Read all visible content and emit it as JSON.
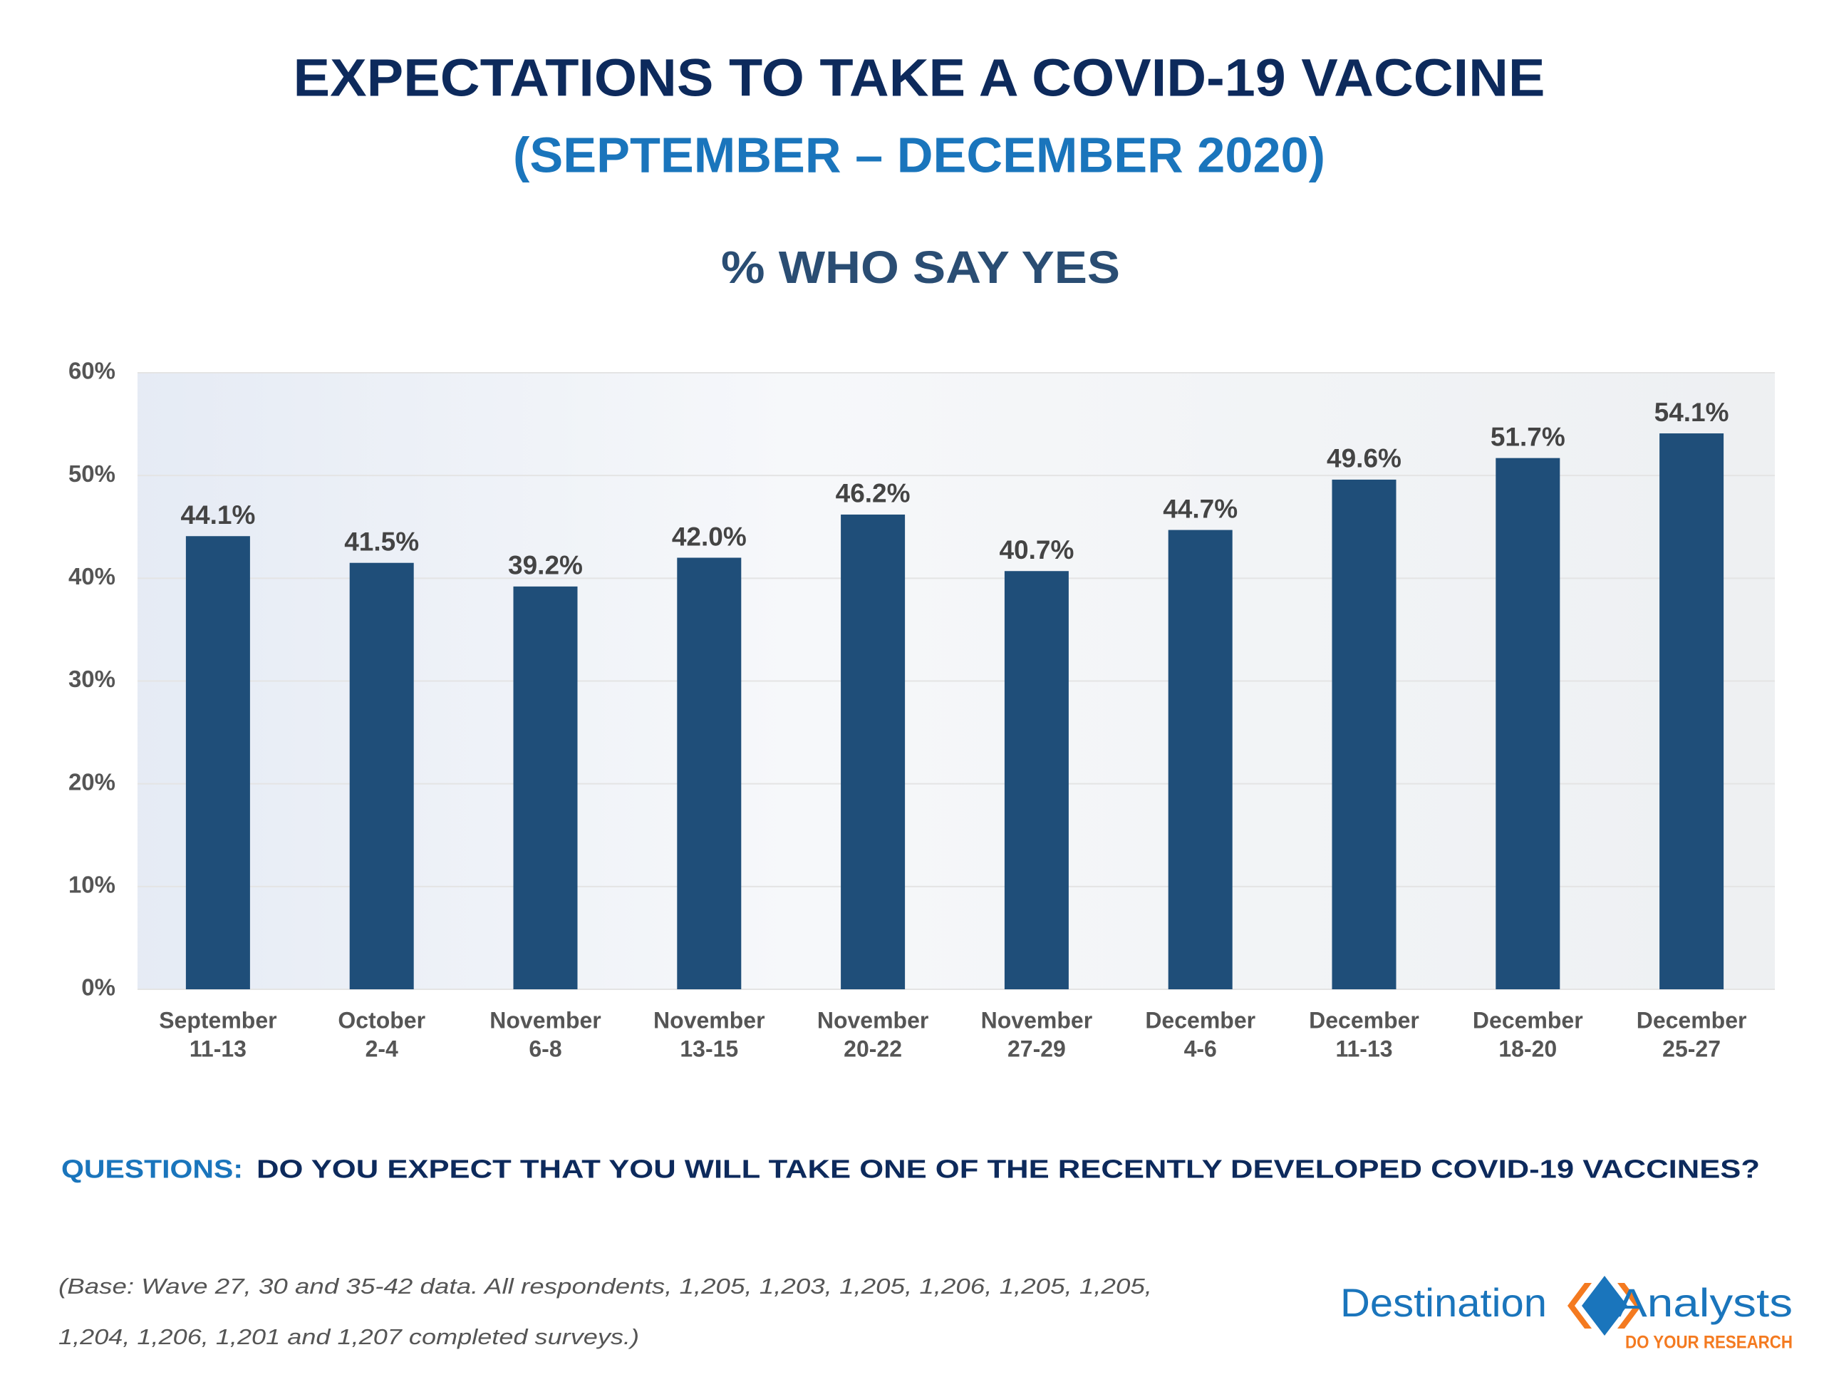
{
  "title": "EXPECTATIONS TO TAKE A COVID-19 VACCINE",
  "subtitle": "(SEPTEMBER – DECEMBER 2020)",
  "chart_data": {
    "type": "bar",
    "title": "% WHO SAY YES",
    "categories": [
      [
        "September",
        "11-13"
      ],
      [
        "October",
        "2-4"
      ],
      [
        "November",
        "6-8"
      ],
      [
        "November",
        "13-15"
      ],
      [
        "November",
        "20-22"
      ],
      [
        "November",
        "27-29"
      ],
      [
        "December",
        "4-6"
      ],
      [
        "December",
        "11-13"
      ],
      [
        "December",
        "18-20"
      ],
      [
        "December",
        "25-27"
      ]
    ],
    "values": [
      44.1,
      41.5,
      39.2,
      42.0,
      46.2,
      40.7,
      44.7,
      49.6,
      51.7,
      54.1
    ],
    "value_labels": [
      "44.1%",
      "41.5%",
      "39.2%",
      "42.0%",
      "46.2%",
      "40.7%",
      "44.7%",
      "49.6%",
      "51.7%",
      "54.1%"
    ],
    "color": "#1f4e79",
    "ylim": [
      0,
      60
    ],
    "yticks": [
      {
        "value": 0,
        "label": "0%"
      },
      {
        "value": 10,
        "label": "10%"
      },
      {
        "value": 20,
        "label": "20%"
      },
      {
        "value": 30,
        "label": "30%"
      },
      {
        "value": 40,
        "label": "40%"
      },
      {
        "value": 50,
        "label": "50%"
      },
      {
        "value": 60,
        "label": "60%"
      }
    ],
    "grid": true
  },
  "question_label": "QUESTIONS:",
  "question": "DO YOU EXPECT THAT YOU WILL TAKE ONE OF THE RECENTLY DEVELOPED COVID-19 VACCINES?",
  "base_note": [
    "(Base: Wave 27, 30 and 35-42 data. All respondents, 1,205, 1,203, 1,205, 1,206, 1,205, 1,205,",
    "1,204, 1,206, 1,201 and 1,207 completed surveys.)"
  ],
  "logo": {
    "name_left": "Destination",
    "name_right": "Analysts",
    "tagline": "DO YOUR RESEARCH"
  }
}
